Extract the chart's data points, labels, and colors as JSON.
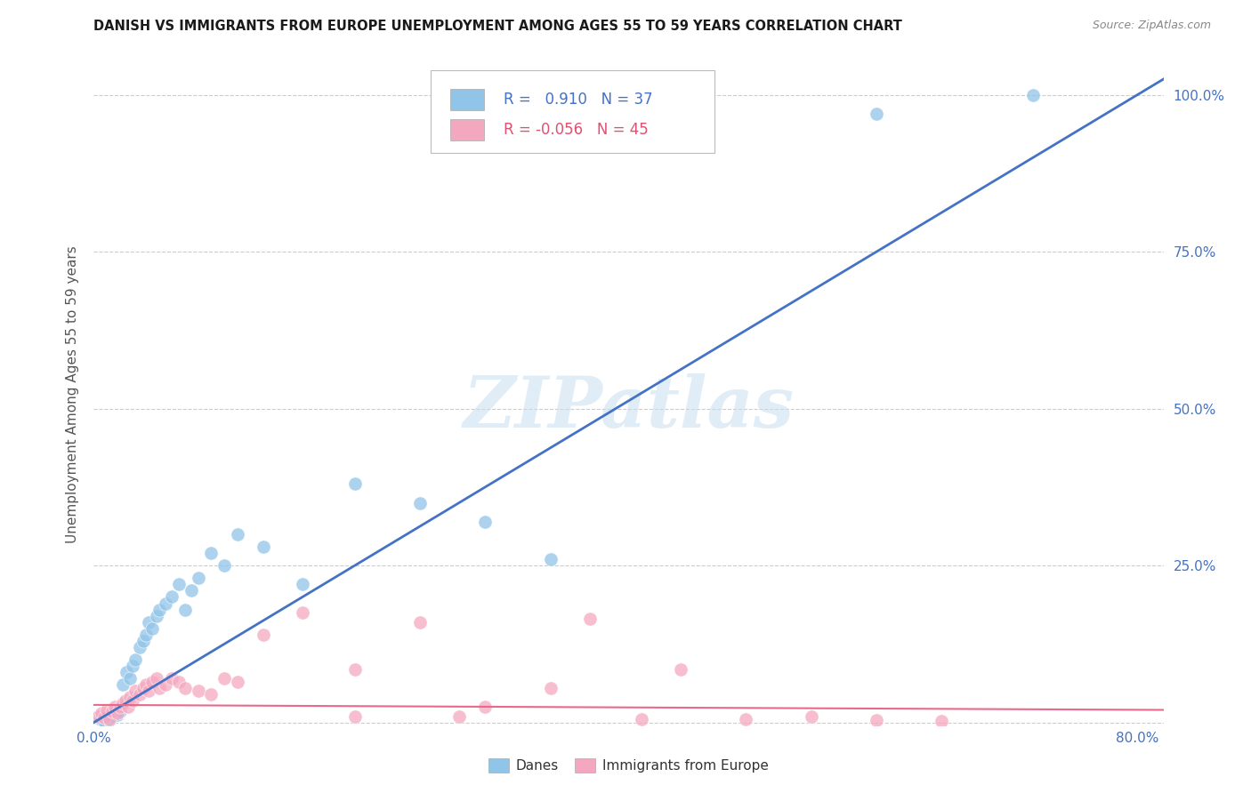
{
  "title": "DANISH VS IMMIGRANTS FROM EUROPE UNEMPLOYMENT AMONG AGES 55 TO 59 YEARS CORRELATION CHART",
  "source": "Source: ZipAtlas.com",
  "ylabel": "Unemployment Among Ages 55 to 59 years",
  "watermark": "ZIPatlas",
  "blue_label": "Danes",
  "pink_label": "Immigrants from Europe",
  "blue_R": "0.910",
  "blue_N": "37",
  "pink_R": "-0.056",
  "pink_N": "45",
  "blue_scatter_color": "#90c4e8",
  "pink_scatter_color": "#f4a8c0",
  "blue_line_color": "#4472c4",
  "pink_line_color": "#e8698a",
  "grid_color": "#cccccc",
  "title_color": "#1a1a1a",
  "ylabel_color": "#555555",
  "tick_color": "#4472c4",
  "legend_text_color_blue": "#4472c4",
  "legend_text_color_pink": "#e05070",
  "xlim": [
    0.0,
    0.82
  ],
  "ylim": [
    -0.005,
    1.05
  ],
  "blue_scatter_x": [
    0.005,
    0.008,
    0.01,
    0.012,
    0.014,
    0.016,
    0.018,
    0.02,
    0.022,
    0.025,
    0.028,
    0.03,
    0.032,
    0.035,
    0.038,
    0.04,
    0.042,
    0.045,
    0.048,
    0.05,
    0.055,
    0.06,
    0.065,
    0.07,
    0.075,
    0.08,
    0.09,
    0.1,
    0.11,
    0.13,
    0.16,
    0.2,
    0.25,
    0.3,
    0.35,
    0.6,
    0.72
  ],
  "blue_scatter_y": [
    0.005,
    0.003,
    0.008,
    0.004,
    0.01,
    0.015,
    0.012,
    0.018,
    0.06,
    0.08,
    0.07,
    0.09,
    0.1,
    0.12,
    0.13,
    0.14,
    0.16,
    0.15,
    0.17,
    0.18,
    0.19,
    0.2,
    0.22,
    0.18,
    0.21,
    0.23,
    0.27,
    0.25,
    0.3,
    0.28,
    0.22,
    0.38,
    0.35,
    0.32,
    0.26,
    0.97,
    1.0
  ],
  "pink_scatter_x": [
    0.003,
    0.006,
    0.008,
    0.01,
    0.012,
    0.014,
    0.016,
    0.018,
    0.02,
    0.022,
    0.024,
    0.026,
    0.028,
    0.03,
    0.032,
    0.035,
    0.038,
    0.04,
    0.042,
    0.045,
    0.048,
    0.05,
    0.055,
    0.06,
    0.065,
    0.07,
    0.08,
    0.09,
    0.1,
    0.11,
    0.13,
    0.16,
    0.2,
    0.25,
    0.3,
    0.35,
    0.42,
    0.5,
    0.55,
    0.6,
    0.65,
    0.38,
    0.45,
    0.28,
    0.2
  ],
  "pink_scatter_y": [
    0.01,
    0.015,
    0.008,
    0.02,
    0.005,
    0.018,
    0.025,
    0.015,
    0.025,
    0.03,
    0.035,
    0.025,
    0.04,
    0.035,
    0.05,
    0.045,
    0.055,
    0.06,
    0.05,
    0.065,
    0.07,
    0.055,
    0.06,
    0.07,
    0.065,
    0.055,
    0.05,
    0.045,
    0.07,
    0.065,
    0.14,
    0.175,
    0.085,
    0.16,
    0.025,
    0.055,
    0.005,
    0.005,
    0.01,
    0.004,
    0.003,
    0.165,
    0.085,
    0.01,
    0.01
  ],
  "blue_line_x": [
    0.0,
    0.82
  ],
  "blue_line_y": [
    0.0,
    1.025
  ],
  "pink_line_x": [
    0.0,
    0.82
  ],
  "pink_line_y": [
    0.028,
    0.02
  ]
}
